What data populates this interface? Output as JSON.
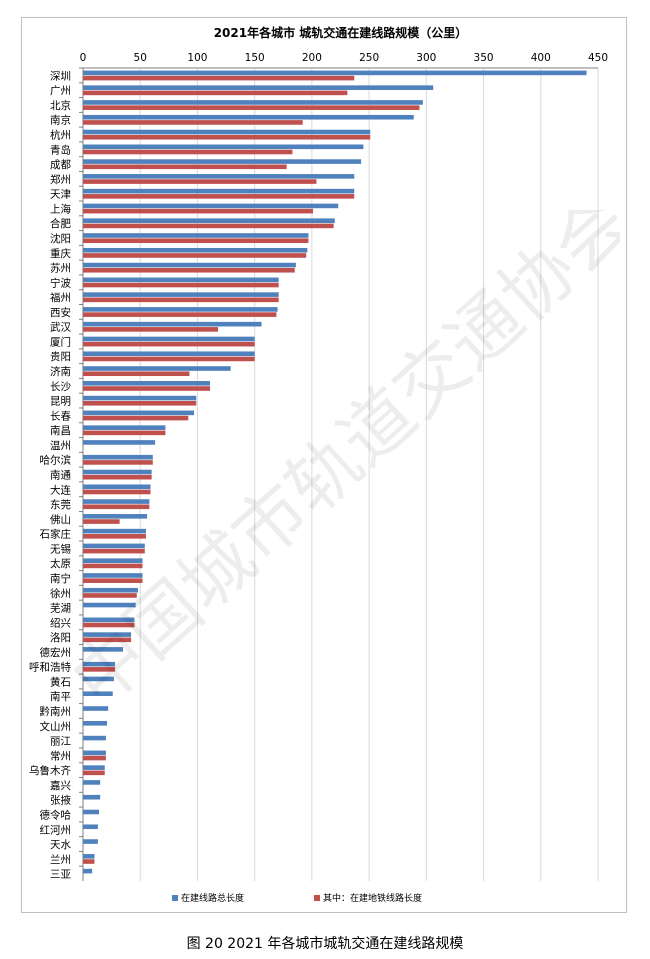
{
  "caption": "图 20   2021 年各城市城轨交通在建线路规模",
  "watermark": "中国城市轨道交通协会",
  "colors": {
    "total": "#4F81BD",
    "metro": "#C0504D",
    "grid": "#d9d9d9",
    "axis": "#7f7f7f"
  },
  "chart_data": {
    "type": "bar",
    "orientation": "horizontal",
    "title": "2021年各城市 城轨交通在建线路规模（公里）",
    "xlim": [
      0,
      450
    ],
    "xticks": [
      0,
      50,
      100,
      150,
      200,
      250,
      300,
      350,
      400,
      450
    ],
    "grid": true,
    "legend_position": "bottom",
    "categories": [
      "深圳",
      "广州",
      "北京",
      "南京",
      "杭州",
      "青岛",
      "成都",
      "郑州",
      "天津",
      "上海",
      "合肥",
      "沈阳",
      "重庆",
      "苏州",
      "宁波",
      "福州",
      "西安",
      "武汉",
      "厦门",
      "贵阳",
      "济南",
      "长沙",
      "昆明",
      "长春",
      "南昌",
      "温州",
      "哈尔滨",
      "南通",
      "大连",
      "东莞",
      "佛山",
      "石家庄",
      "无锡",
      "太原",
      "南宁",
      "徐州",
      "芜湖",
      "绍兴",
      "洛阳",
      "德宏州",
      "呼和浩特",
      "黄石",
      "南平",
      "黔南州",
      "文山州",
      "丽江",
      "常州",
      "乌鲁木齐",
      "嘉兴",
      "张掖",
      "德令哈",
      "红河州",
      "天水",
      "兰州",
      "三亚"
    ],
    "series": [
      {
        "name": "在建线路总长度",
        "values": [
          440,
          306,
          297,
          289,
          251,
          245,
          243,
          237,
          237,
          223,
          220,
          197,
          196,
          186,
          171,
          171,
          170,
          156,
          150,
          150,
          129,
          111,
          99,
          97,
          72,
          63,
          61,
          60,
          59,
          58,
          56,
          55,
          54,
          52,
          52,
          48,
          46,
          45,
          42,
          35,
          28,
          27,
          26,
          22,
          21,
          20,
          20,
          19,
          15,
          15,
          14,
          13,
          13,
          10,
          8
        ]
      },
      {
        "name": "其中：在建地铁线路长度",
        "values": [
          237,
          231,
          294,
          192,
          251,
          183,
          178,
          204,
          237,
          201,
          219,
          197,
          195,
          185,
          171,
          171,
          169,
          118,
          150,
          150,
          93,
          111,
          99,
          92,
          72,
          0,
          61,
          60,
          59,
          58,
          32,
          55,
          54,
          52,
          52,
          47,
          0,
          45,
          42,
          0,
          28,
          0,
          0,
          0,
          0,
          0,
          20,
          19,
          0,
          0,
          0,
          0,
          0,
          10,
          0
        ]
      }
    ]
  }
}
